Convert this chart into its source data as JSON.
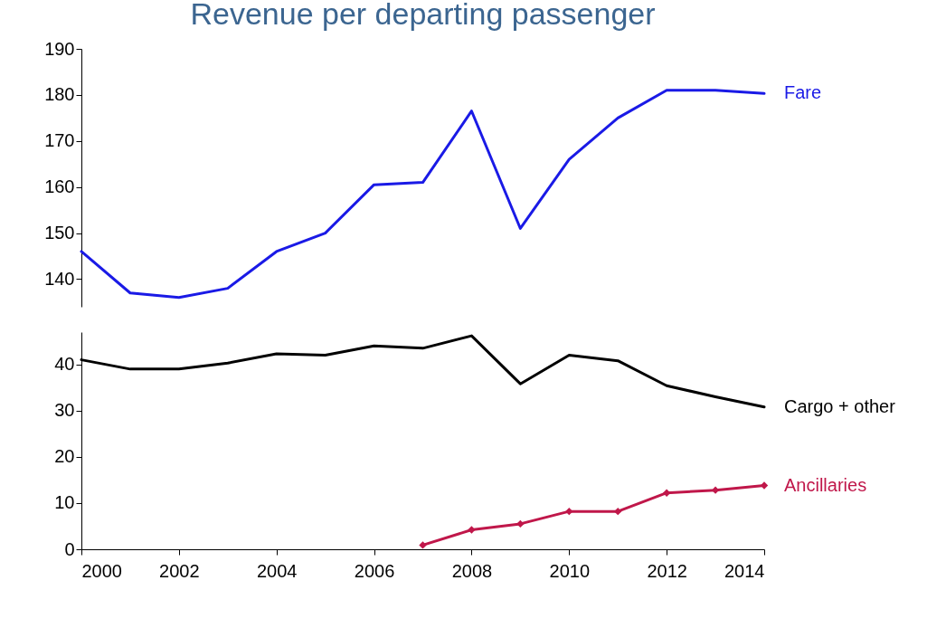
{
  "chart_data": [
    {
      "type": "line",
      "title": "Revenue per departing passenger",
      "x": [
        2000,
        2001,
        2002,
        2003,
        2004,
        2005,
        2006,
        2007,
        2008,
        2009,
        2010,
        2011,
        2012,
        2013,
        2014
      ],
      "series": [
        {
          "name": "Fare",
          "color": "#1a1ae6",
          "values": [
            146,
            137,
            136,
            138,
            146,
            150,
            160.5,
            161,
            176.5,
            151,
            166,
            175,
            181,
            181,
            180.3
          ]
        }
      ],
      "xlim": [
        2000,
        2014
      ],
      "ylim": [
        134,
        190
      ],
      "yticks": [
        140,
        150,
        160,
        170,
        180,
        190
      ],
      "tick_labels": "y",
      "grid": false
    },
    {
      "type": "line",
      "x": [
        2000,
        2001,
        2002,
        2003,
        2004,
        2005,
        2006,
        2007,
        2008,
        2009,
        2010,
        2011,
        2012,
        2013,
        2014
      ],
      "series": [
        {
          "name": "Cargo + other",
          "color": "#000000",
          "values": [
            41,
            39,
            39,
            40.3,
            42.3,
            42,
            44,
            43.5,
            46.2,
            35.8,
            42,
            40.8,
            35.4,
            33,
            30.8
          ]
        },
        {
          "name": "Ancillaries",
          "color": "#c0174a",
          "marker": "diamond",
          "values": [
            null,
            null,
            null,
            null,
            null,
            null,
            null,
            0.9,
            4.2,
            5.5,
            8.2,
            8.2,
            12.2,
            12.8,
            13.8
          ]
        }
      ],
      "xlim": [
        2000,
        2014
      ],
      "xticks": [
        2000,
        2002,
        2004,
        2006,
        2008,
        2010,
        2012,
        2014
      ],
      "ylim": [
        0,
        47
      ],
      "yticks": [
        0,
        10,
        20,
        30,
        40
      ],
      "grid": false
    }
  ]
}
